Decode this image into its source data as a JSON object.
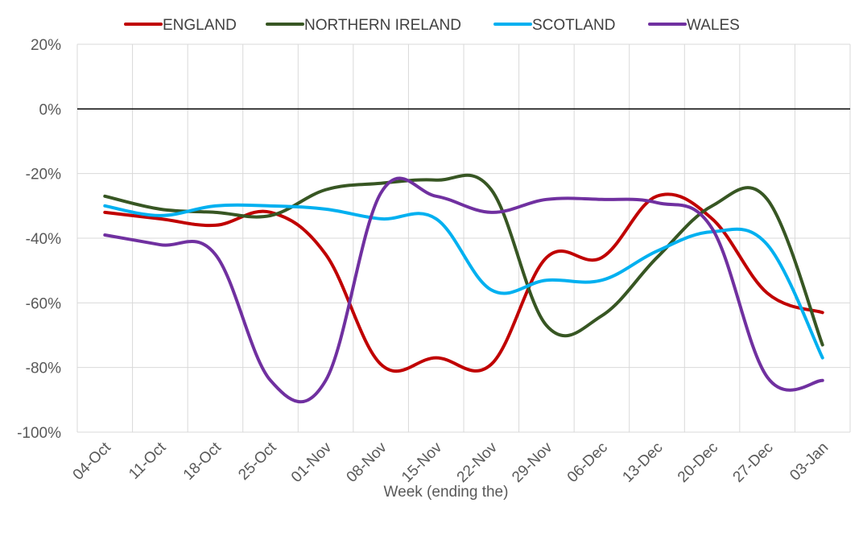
{
  "chart_data": {
    "type": "line",
    "title": "",
    "xlabel": "Week (ending the)",
    "ylabel": "",
    "categories": [
      "04-Oct",
      "11-Oct",
      "18-Oct",
      "25-Oct",
      "01-Nov",
      "08-Nov",
      "15-Nov",
      "22-Nov",
      "29-Nov",
      "06-Dec",
      "13-Dec",
      "20-Dec",
      "27-Dec",
      "03-Jan"
    ],
    "ylim": [
      -100,
      20
    ],
    "yticks": [
      20,
      0,
      -20,
      -40,
      -60,
      -80,
      -100
    ],
    "ytick_labels": [
      "20%",
      "0%",
      "-20%",
      "-40%",
      "-60%",
      "-80%",
      "-100%"
    ],
    "grid": true,
    "zero_line": true,
    "legend_position": "top",
    "series": [
      {
        "name": "ENGLAND",
        "color": "#C00000",
        "values": [
          -32,
          -34,
          -36,
          -32,
          -45,
          -79,
          -77,
          -79,
          -46,
          -46,
          -27,
          -34,
          -57,
          -63
        ]
      },
      {
        "name": "NORTHERN IRELAND",
        "color": "#375623",
        "values": [
          -27,
          -31,
          -32,
          -33,
          -25,
          -23,
          -22,
          -25,
          -67,
          -64,
          -46,
          -30,
          -28,
          -73
        ]
      },
      {
        "name": "SCOTLAND",
        "color": "#00B0F0",
        "values": [
          -30,
          -33,
          -30,
          -30,
          -31,
          -34,
          -34,
          -56,
          -53,
          -53,
          -44,
          -38,
          -42,
          -77
        ]
      },
      {
        "name": "WALES",
        "color": "#7030A0",
        "values": [
          -39,
          -42,
          -45,
          -84,
          -84,
          -26,
          -27,
          -32,
          -28,
          -28,
          -29,
          -37,
          -83,
          -84
        ]
      }
    ]
  }
}
